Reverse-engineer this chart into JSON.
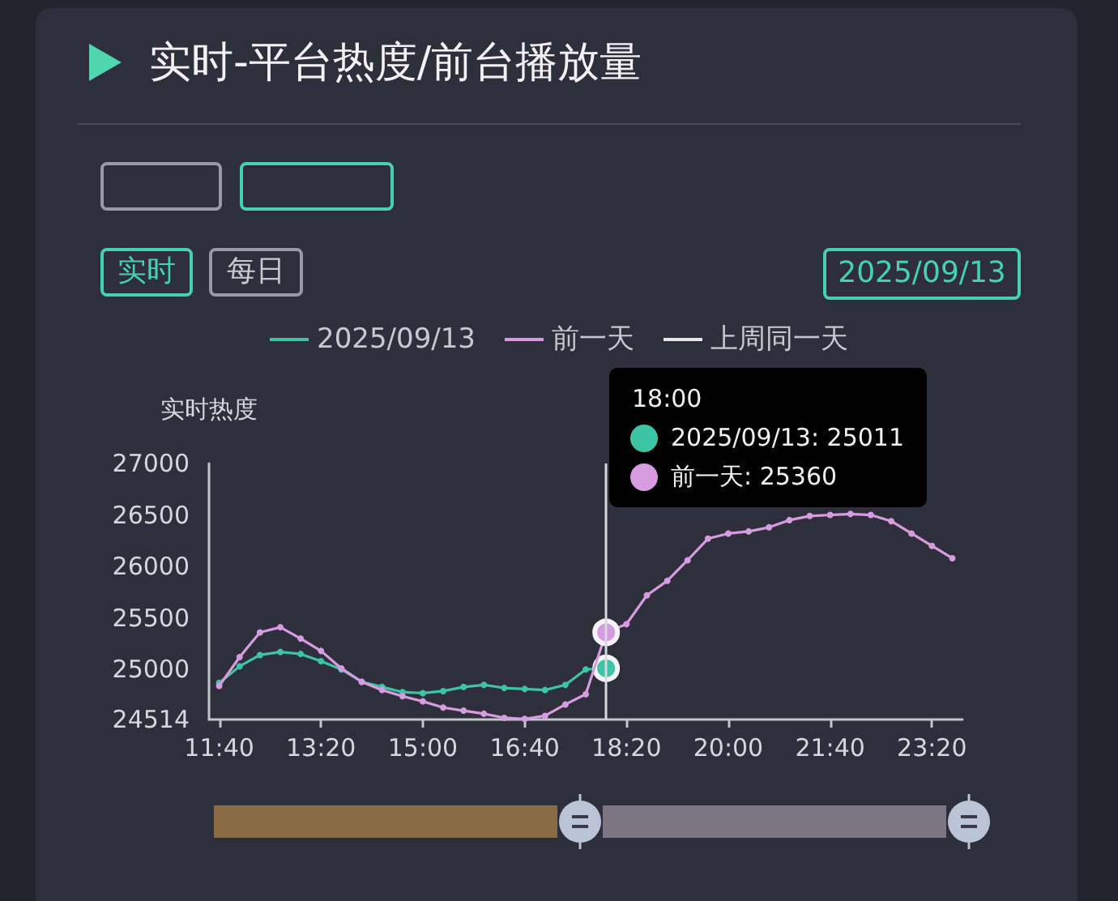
{
  "chart_data": {
    "type": "line",
    "title": "实时-平台热度/前台播放量",
    "ylabel": "实时热度",
    "x": [
      11.667,
      12,
      12.333,
      12.667,
      13,
      13.333,
      13.667,
      14,
      14.333,
      14.667,
      15,
      15.333,
      15.667,
      16,
      16.333,
      16.667,
      17,
      17.333,
      17.667,
      18,
      18.333,
      18.667,
      19,
      19.333,
      19.667,
      20,
      20.333,
      20.667,
      21,
      21.333,
      21.667,
      22,
      22.333,
      22.667,
      23,
      23.333,
      23.667
    ],
    "xlim": [
      11.5,
      23.833
    ],
    "xticks": [
      {
        "value": 11.667,
        "label": "11:40"
      },
      {
        "value": 13.333,
        "label": "13:20"
      },
      {
        "value": 15,
        "label": "15:00"
      },
      {
        "value": 16.667,
        "label": "16:40"
      },
      {
        "value": 18.333,
        "label": "18:20"
      },
      {
        "value": 20,
        "label": "20:00"
      },
      {
        "value": 21.667,
        "label": "21:40"
      },
      {
        "value": 23.333,
        "label": "23:20"
      }
    ],
    "ylim": [
      24514,
      27000
    ],
    "yticks": [
      24514,
      25000,
      25500,
      26000,
      26500,
      27000
    ],
    "series": [
      {
        "name": "2025/09/13",
        "color": "#3cc4a5",
        "values": [
          24870,
          25030,
          25140,
          25170,
          25150,
          25080,
          25000,
          24880,
          24830,
          24780,
          24770,
          24790,
          24830,
          24850,
          24820,
          24810,
          24800,
          24850,
          25000,
          25011,
          null,
          null,
          null,
          null,
          null,
          null,
          null,
          null,
          null,
          null,
          null,
          null,
          null,
          null,
          null,
          null,
          null
        ]
      },
      {
        "name": "前一天",
        "color": "#d69be0",
        "values": [
          24840,
          25120,
          25360,
          25410,
          25300,
          25180,
          25010,
          24880,
          24800,
          24740,
          24690,
          24630,
          24600,
          24570,
          24530,
          24520,
          24550,
          24660,
          24760,
          25360,
          25440,
          25720,
          25860,
          26060,
          26270,
          26320,
          26340,
          26380,
          26450,
          26490,
          26500,
          26510,
          26500,
          26440,
          26320,
          26200,
          26080
        ]
      },
      {
        "name": "上周同一天",
        "color": "#e6e6ea",
        "values": [
          null,
          null,
          null,
          null,
          null,
          null,
          null,
          null,
          null,
          null,
          null,
          null,
          null,
          null,
          null,
          null,
          null,
          null,
          null,
          null,
          null,
          null,
          null,
          null,
          null,
          null,
          null,
          null,
          null,
          null,
          null,
          null,
          null,
          null,
          null,
          null,
          null
        ]
      }
    ],
    "legend": "top",
    "grid": false,
    "marker": "circle",
    "line_style": "solid",
    "ref_lines": [
      {
        "axis": "x",
        "value": 18,
        "color": "#d8d8e0"
      }
    ],
    "annotations": [
      "实时",
      "每日",
      "2025/09/13",
      "18:00",
      "2025/09/13: 25011",
      "前一天: 25360"
    ]
  }
}
